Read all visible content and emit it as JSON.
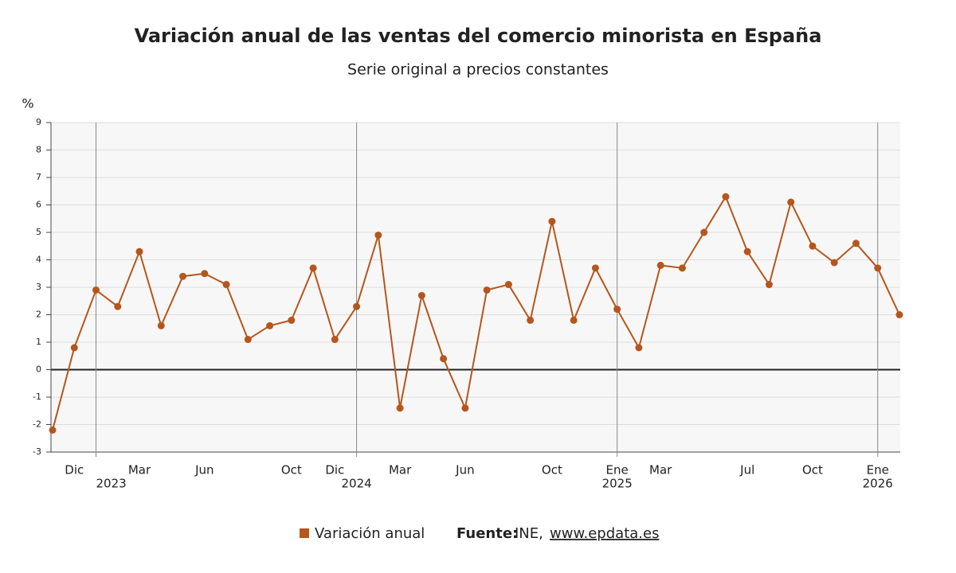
{
  "chart_data": {
    "type": "line",
    "title": "Variación anual de las ventas del comercio minorista en España",
    "subtitle": "Serie original a precios constantes",
    "y_unit": "%",
    "categories": [
      null,
      "Dic",
      null,
      null,
      "Mar",
      null,
      null,
      "Jun",
      null,
      null,
      null,
      "Oct",
      null,
      "Dic",
      null,
      null,
      "Mar",
      null,
      null,
      "Jun",
      null,
      null,
      null,
      "Oct",
      null,
      null,
      "Ene",
      null,
      "Mar",
      null,
      null,
      null,
      "Jul",
      null,
      null,
      "Oct",
      null,
      null,
      "Ene",
      null
    ],
    "years": [
      {
        "index": 2,
        "label": "2023"
      },
      {
        "index": 14,
        "label": "2024"
      },
      {
        "index": 26,
        "label": "2025"
      },
      {
        "index": 38,
        "label": "2026"
      }
    ],
    "series": [
      {
        "name": "Variación anual",
        "color": "#b5561c",
        "values": [
          -2.2,
          0.8,
          2.9,
          2.3,
          4.3,
          1.6,
          3.4,
          3.5,
          3.1,
          1.1,
          1.6,
          1.8,
          3.7,
          1.1,
          2.3,
          4.9,
          -1.4,
          2.7,
          0.4,
          -1.4,
          2.9,
          3.1,
          1.8,
          5.4,
          1.8,
          3.7,
          2.2,
          0.8,
          3.8,
          3.7,
          5.0,
          6.3,
          4.3,
          3.1,
          6.1,
          4.5,
          3.9,
          4.6,
          3.7,
          2.0
        ]
      }
    ],
    "ylim": [
      -3,
      9
    ],
    "yticks": [
      -3,
      -2,
      -1,
      0,
      1,
      2,
      3,
      4,
      5,
      6,
      7,
      8,
      9
    ],
    "grid": true,
    "source": {
      "label": "Fuente:",
      "text": "INE,",
      "link": "www.epdata.es"
    }
  }
}
